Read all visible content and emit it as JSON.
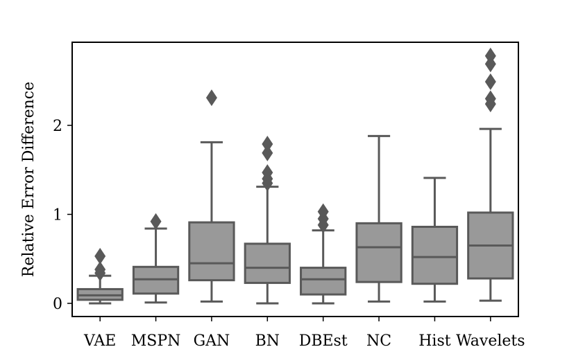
{
  "chart_data": {
    "type": "box",
    "title": "",
    "xlabel": "",
    "ylabel": "Relative Error Difference",
    "ylim": [
      -0.14,
      2.9
    ],
    "yticks": [
      0,
      1,
      2
    ],
    "grid": false,
    "box_color": "#999999",
    "line_color": "#595959",
    "categories": [
      "VAE",
      "MSPN",
      "GAN",
      "BN",
      "DBEst",
      "NC",
      "Hist",
      "Wavelets"
    ],
    "boxes": [
      {
        "label": "VAE",
        "whisker_low": 0.0,
        "q1": 0.04,
        "median": 0.09,
        "q3": 0.16,
        "whisker_high": 0.31,
        "outliers": [
          0.34,
          0.38,
          0.53
        ]
      },
      {
        "label": "MSPN",
        "whisker_low": 0.01,
        "q1": 0.11,
        "median": 0.27,
        "q3": 0.41,
        "whisker_high": 0.84,
        "outliers": [
          0.92
        ]
      },
      {
        "label": "GAN",
        "whisker_low": 0.02,
        "q1": 0.26,
        "median": 0.45,
        "q3": 0.91,
        "whisker_high": 1.81,
        "outliers": [
          2.31
        ]
      },
      {
        "label": "BN",
        "whisker_low": 0.0,
        "q1": 0.23,
        "median": 0.4,
        "q3": 0.67,
        "whisker_high": 1.31,
        "outliers": [
          1.35,
          1.4,
          1.47,
          1.69,
          1.79
        ]
      },
      {
        "label": "DBEst",
        "whisker_low": 0.0,
        "q1": 0.1,
        "median": 0.27,
        "q3": 0.4,
        "whisker_high": 0.82,
        "outliers": [
          0.88,
          0.95,
          1.03
        ]
      },
      {
        "label": "NC",
        "whisker_low": 0.02,
        "q1": 0.24,
        "median": 0.63,
        "q3": 0.9,
        "whisker_high": 1.88,
        "outliers": []
      },
      {
        "label": "Hist",
        "whisker_low": 0.02,
        "q1": 0.22,
        "median": 0.52,
        "q3": 0.86,
        "whisker_high": 1.41,
        "outliers": []
      },
      {
        "label": "Wavelets",
        "whisker_low": 0.03,
        "q1": 0.28,
        "median": 0.65,
        "q3": 1.02,
        "whisker_high": 1.96,
        "outliers": [
          2.24,
          2.3,
          2.49,
          2.69,
          2.78
        ]
      }
    ]
  }
}
